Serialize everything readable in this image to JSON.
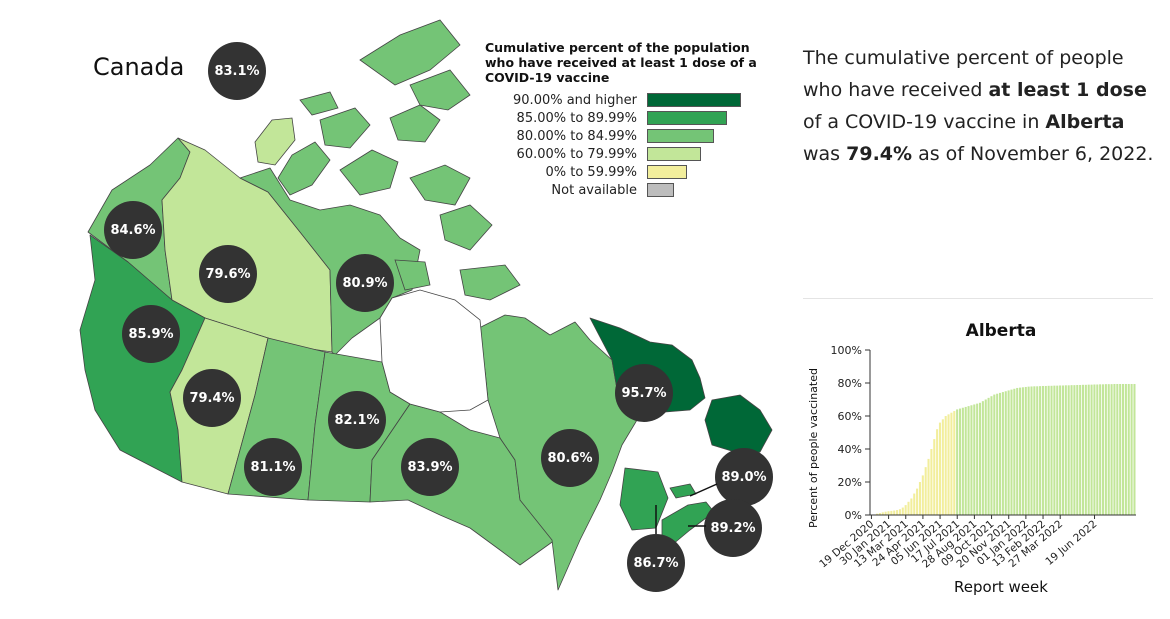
{
  "map": {
    "country_label": "Canada",
    "country_value": "83.1%",
    "provinces": [
      {
        "id": "bc",
        "value": "85.9%",
        "color": "#31a354"
      },
      {
        "id": "yt",
        "value": "84.6%",
        "color": "#74c476"
      },
      {
        "id": "nt",
        "value": "79.6%",
        "color": "#c2e699"
      },
      {
        "id": "nu",
        "value": "80.9%",
        "color": "#74c476"
      },
      {
        "id": "ab",
        "value": "79.4%",
        "color": "#c2e699"
      },
      {
        "id": "sk",
        "value": "81.1%",
        "color": "#74c476"
      },
      {
        "id": "mb",
        "value": "82.1%",
        "color": "#74c476"
      },
      {
        "id": "on",
        "value": "83.9%",
        "color": "#74c476"
      },
      {
        "id": "qc",
        "value": "80.6%",
        "color": "#74c476"
      },
      {
        "id": "nl",
        "value": "95.7%",
        "color": "#006837"
      },
      {
        "id": "pe",
        "value": "89.0%",
        "color": "#31a354"
      },
      {
        "id": "ns",
        "value": "89.2%",
        "color": "#31a354"
      },
      {
        "id": "nb",
        "value": "86.7%",
        "color": "#31a354"
      }
    ]
  },
  "legend": {
    "title": "Cumulative percent of the population who have received at least 1 dose of a COVID-19 vaccine",
    "items": [
      {
        "label": "90.00% and higher",
        "color": "#006837"
      },
      {
        "label": "85.00% to 89.99%",
        "color": "#31a354"
      },
      {
        "label": "80.00% to 84.99%",
        "color": "#74c476"
      },
      {
        "label": "60.00% to 79.99%",
        "color": "#c2e699"
      },
      {
        "label": "0% to 59.99%",
        "color": "#f2ee9c"
      },
      {
        "label": "Not available",
        "color": "#bdbdbd"
      }
    ]
  },
  "summary": {
    "part1": "The cumulative percent of people who have received ",
    "bold1": "at least 1 dose",
    "part2": " of a COVID-19 vaccine in ",
    "bold2": "Alberta",
    "part3": " was ",
    "bold3": "79.4%",
    "part4": " as of November 6, 2022."
  },
  "chart_data": {
    "type": "bar",
    "title": "Alberta",
    "xlabel": "Report week",
    "ylabel": "Percent of people vaccinated",
    "ylim": [
      0,
      100
    ],
    "yticks": [
      "0%",
      "20%",
      "40%",
      "60%",
      "80%",
      "100%"
    ],
    "xtick_labels": [
      "19 Dec 2020",
      "30 Jan 2021",
      "13 Mar 2021",
      "24 Apr 2021",
      "05 Jun 2021",
      "17 Jul 2021",
      "28 Aug 2021",
      "09 Oct 2021",
      "20 Nov 2021",
      "01 Jan 2022",
      "13 Feb 2022",
      "27 Mar 2022",
      "19 Jun 2022"
    ],
    "first_week": "2020-12-19",
    "color_yellow": "#f2ee9c",
    "color_green": "#c2e699",
    "values": [
      0.1,
      0.3,
      0.8,
      1.2,
      1.6,
      2.0,
      2.3,
      2.5,
      2.7,
      3.0,
      3.5,
      4.5,
      6,
      8,
      10,
      13,
      16,
      20,
      24,
      29,
      34,
      40,
      46,
      52,
      56,
      58,
      60,
      61,
      62,
      63,
      64,
      64.5,
      65,
      65.5,
      66,
      66.5,
      67,
      67.5,
      68,
      69,
      70,
      71,
      72,
      73,
      73.5,
      74,
      74.5,
      75,
      75.5,
      76,
      76.5,
      77,
      77.2,
      77.4,
      77.6,
      77.8,
      77.9,
      78,
      78,
      78.1,
      78.2,
      78.2,
      78.3,
      78.3,
      78.4,
      78.4,
      78.5,
      78.5,
      78.6,
      78.6,
      78.7,
      78.7,
      78.8,
      78.8,
      78.9,
      78.9,
      79,
      79,
      79.1,
      79.1,
      79.2,
      79.2,
      79.3,
      79.3,
      79.3,
      79.4,
      79.4,
      79.4,
      79.4,
      79.4,
      79.4,
      79.4,
      79.4
    ]
  }
}
